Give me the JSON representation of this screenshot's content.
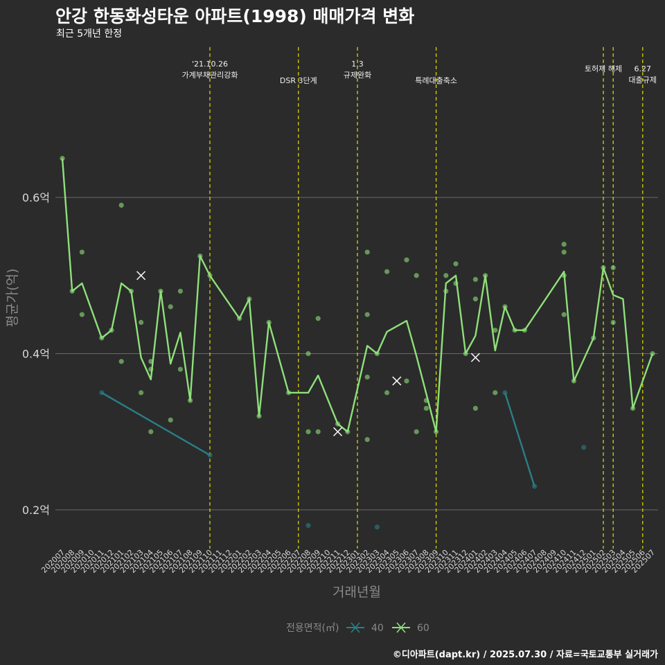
{
  "title": "안강 한동화성타운 아파트(1998) 매매가격 변화",
  "subtitle": "최근 5개년 한정",
  "caption": "©디아파트(dapt.kr) / 2025.07.30 / 자료=국토교통부 실거래가",
  "colors": {
    "background": "#2b2b2b",
    "grid": "#6a6a6a",
    "series_40": "#2a7f86",
    "series_60": "#8fe07a",
    "vline": "#e3e000"
  },
  "chart_data": {
    "type": "line",
    "xlabel": "거래년월",
    "ylabel": "평균가(억)",
    "legend_title": "전용면적(㎡)",
    "legend_position": "bottom",
    "y_ticks": [
      {
        "value": 0.2,
        "label": "0.2억"
      },
      {
        "value": 0.4,
        "label": "0.4억"
      },
      {
        "value": 0.6,
        "label": "0.6억"
      }
    ],
    "ylim": [
      0.15,
      0.75
    ],
    "grid": true,
    "categories": [
      "202007",
      "202008",
      "202009",
      "202010",
      "202011",
      "202012",
      "202101",
      "202102",
      "202103",
      "202104",
      "202105",
      "202106",
      "202107",
      "202108",
      "202109",
      "202110",
      "202111",
      "202112",
      "202201",
      "202202",
      "202203",
      "202204",
      "202205",
      "202206",
      "202207",
      "202208",
      "202209",
      "202210",
      "202211",
      "202212",
      "202301",
      "202302",
      "202303",
      "202304",
      "202305",
      "202306",
      "202307",
      "202308",
      "202309",
      "202310",
      "202311",
      "202312",
      "202401",
      "202402",
      "202403",
      "202404",
      "202405",
      "202406",
      "202407",
      "202408",
      "202409",
      "202410",
      "202411",
      "202412",
      "202501",
      "202502",
      "202503",
      "202504",
      "202505",
      "202506",
      "202507"
    ],
    "annotations": [
      {
        "x": "202110",
        "label_lines": [
          "'21.10.26",
          "가계부채관리강화"
        ]
      },
      {
        "x": "202207",
        "label_lines": [
          "DSR 3단계"
        ]
      },
      {
        "x": "202301",
        "label_lines": [
          "1.3",
          "규제완화"
        ]
      },
      {
        "x": "202309",
        "label_lines": [
          "특례대출축소"
        ]
      },
      {
        "x": "202502",
        "label_lines": [
          "토허제 해제"
        ]
      },
      {
        "x": "202503",
        "label_lines": []
      },
      {
        "x": "202506",
        "label_lines": [
          "6.27",
          "대출규제"
        ]
      }
    ],
    "series": [
      {
        "name": "40",
        "line": [
          [
            "202011",
            0.35
          ],
          [
            "202110",
            0.27
          ]
        ],
        "line2": [
          [
            "202404",
            0.35
          ],
          [
            "202407",
            0.23
          ]
        ],
        "points": [
          [
            "202011",
            0.35
          ],
          [
            "202110",
            0.27
          ],
          [
            "202208",
            0.18
          ],
          [
            "202303",
            0.178
          ],
          [
            "202404",
            0.35
          ],
          [
            "202407",
            0.23
          ],
          [
            "202412",
            0.28
          ]
        ],
        "crosses": []
      },
      {
        "name": "60",
        "line": [
          [
            "202007",
            0.65
          ],
          [
            "202008",
            0.48
          ],
          [
            "202009",
            0.49
          ],
          [
            "202011",
            0.42
          ],
          [
            "202012",
            0.43
          ],
          [
            "202101",
            0.49
          ],
          [
            "202102",
            0.48
          ],
          [
            "202103",
            0.395
          ],
          [
            "202104",
            0.367
          ],
          [
            "202105",
            0.48
          ],
          [
            "202106",
            0.387
          ],
          [
            "202107",
            0.427
          ],
          [
            "202108",
            0.34
          ],
          [
            "202109",
            0.525
          ],
          [
            "202110",
            0.5
          ],
          [
            "202201",
            0.445
          ],
          [
            "202202",
            0.47
          ],
          [
            "202203",
            0.32
          ],
          [
            "202204",
            0.44
          ],
          [
            "202206",
            0.35
          ],
          [
            "202208",
            0.35
          ],
          [
            "202209",
            0.372
          ],
          [
            "202211",
            0.31
          ],
          [
            "202212",
            0.3
          ],
          [
            "202302",
            0.41
          ],
          [
            "202303",
            0.4
          ],
          [
            "202304",
            0.428
          ],
          [
            "202306",
            0.442
          ],
          [
            "202307",
            0.397
          ],
          [
            "202309",
            0.3
          ],
          [
            "202310",
            0.49
          ],
          [
            "202311",
            0.5
          ],
          [
            "202312",
            0.4
          ],
          [
            "202401",
            0.423
          ],
          [
            "202402",
            0.5
          ],
          [
            "202403",
            0.404
          ],
          [
            "202404",
            0.46
          ],
          [
            "202405",
            0.43
          ],
          [
            "202406",
            0.43
          ],
          [
            "202410",
            0.505
          ],
          [
            "202411",
            0.365
          ],
          [
            "202501",
            0.42
          ],
          [
            "202502",
            0.51
          ],
          [
            "202503",
            0.475
          ],
          [
            "202504",
            0.47
          ],
          [
            "202505",
            0.33
          ],
          [
            "202507",
            0.4
          ]
        ],
        "points": [
          [
            "202007",
            0.65
          ],
          [
            "202008",
            0.48
          ],
          [
            "202009",
            0.45
          ],
          [
            "202009",
            0.53
          ],
          [
            "202011",
            0.42
          ],
          [
            "202012",
            0.43
          ],
          [
            "202101",
            0.59
          ],
          [
            "202101",
            0.39
          ],
          [
            "202102",
            0.48
          ],
          [
            "202103",
            0.44
          ],
          [
            "202103",
            0.35
          ],
          [
            "202104",
            0.39
          ],
          [
            "202104",
            0.38
          ],
          [
            "202104",
            0.3
          ],
          [
            "202105",
            0.48
          ],
          [
            "202106",
            0.46
          ],
          [
            "202106",
            0.315
          ],
          [
            "202107",
            0.48
          ],
          [
            "202107",
            0.38
          ],
          [
            "202108",
            0.34
          ],
          [
            "202109",
            0.525
          ],
          [
            "202110",
            0.5
          ],
          [
            "202201",
            0.445
          ],
          [
            "202202",
            0.47
          ],
          [
            "202203",
            0.32
          ],
          [
            "202204",
            0.44
          ],
          [
            "202206",
            0.35
          ],
          [
            "202208",
            0.4
          ],
          [
            "202208",
            0.3
          ],
          [
            "202209",
            0.445
          ],
          [
            "202209",
            0.3
          ],
          [
            "202211",
            0.31
          ],
          [
            "202212",
            0.3
          ],
          [
            "202302",
            0.53
          ],
          [
            "202302",
            0.45
          ],
          [
            "202302",
            0.37
          ],
          [
            "202302",
            0.29
          ],
          [
            "202303",
            0.4
          ],
          [
            "202304",
            0.505
          ],
          [
            "202304",
            0.35
          ],
          [
            "202306",
            0.52
          ],
          [
            "202306",
            0.365
          ],
          [
            "202307",
            0.5
          ],
          [
            "202307",
            0.3
          ],
          [
            "202308",
            0.34
          ],
          [
            "202308",
            0.33
          ],
          [
            "202309",
            0.3
          ],
          [
            "202310",
            0.5
          ],
          [
            "202310",
            0.48
          ],
          [
            "202311",
            0.515
          ],
          [
            "202311",
            0.49
          ],
          [
            "202312",
            0.4
          ],
          [
            "202401",
            0.495
          ],
          [
            "202401",
            0.47
          ],
          [
            "202401",
            0.33
          ],
          [
            "202402",
            0.5
          ],
          [
            "202403",
            0.43
          ],
          [
            "202403",
            0.35
          ],
          [
            "202404",
            0.46
          ],
          [
            "202405",
            0.43
          ],
          [
            "202406",
            0.43
          ],
          [
            "202410",
            0.54
          ],
          [
            "202410",
            0.53
          ],
          [
            "202410",
            0.5
          ],
          [
            "202410",
            0.45
          ],
          [
            "202411",
            0.365
          ],
          [
            "202501",
            0.42
          ],
          [
            "202502",
            0.51
          ],
          [
            "202503",
            0.51
          ],
          [
            "202503",
            0.44
          ],
          [
            "202505",
            0.33
          ],
          [
            "202507",
            0.4
          ]
        ],
        "crosses": [
          [
            "202103",
            0.5
          ],
          [
            "202211",
            0.3
          ],
          [
            "202305",
            0.365
          ],
          [
            "202401",
            0.395
          ]
        ]
      }
    ]
  }
}
